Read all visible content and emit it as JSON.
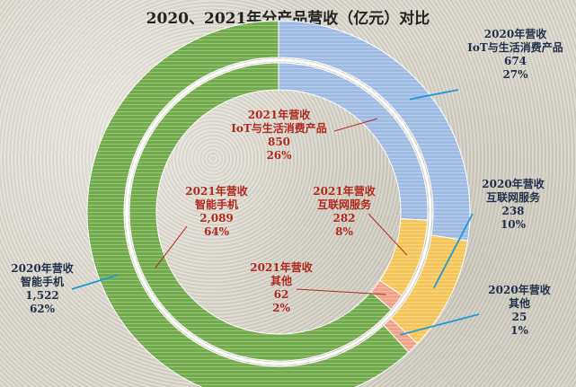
{
  "title": "2020、2021年分产品营收（亿元）对比",
  "chart_data": {
    "type": "pie",
    "subtype": "nested-donut",
    "unit": "亿元",
    "categories": [
      "IoT与生活消费产品",
      "互联网服务",
      "其他",
      "智能手机"
    ],
    "series": [
      {
        "name": "2020年营收",
        "ring": "outer",
        "values": [
          674,
          238,
          25,
          1522
        ],
        "percents": [
          "27%",
          "10%",
          "1%",
          "62%"
        ]
      },
      {
        "name": "2021年营收",
        "ring": "inner",
        "values": [
          850,
          282,
          62,
          2089
        ],
        "percents": [
          "26%",
          "8%",
          "2%",
          "64%"
        ]
      }
    ],
    "colors": {
      "IoT与生活消费产品": "#9dbbe3",
      "互联网服务": "#f5c65a",
      "其他": "#f0a28a",
      "智能手机": "#72ab4c"
    },
    "labels": {
      "outer": [
        {
          "year": "2020年营收",
          "name": "IoT与生活消费产品",
          "value": "674",
          "pct": "27%"
        },
        {
          "year": "2020年营收",
          "name": "互联网服务",
          "value": "238",
          "pct": "10%"
        },
        {
          "year": "2020年营收",
          "name": "其他",
          "value": "25",
          "pct": "1%"
        },
        {
          "year": "2020年营收",
          "name": "智能手机",
          "value": "1,522",
          "pct": "62%"
        }
      ],
      "inner": [
        {
          "year": "2021年营收",
          "name": "IoT与生活消费产品",
          "value": "850",
          "pct": "26%"
        },
        {
          "year": "2021年营收",
          "name": "互联网服务",
          "value": "282",
          "pct": "8%"
        },
        {
          "year": "2021年营收",
          "name": "其他",
          "value": "62",
          "pct": "2%"
        },
        {
          "year": "2021年营收",
          "name": "智能手机",
          "value": "2,089",
          "pct": "64%"
        }
      ]
    }
  }
}
